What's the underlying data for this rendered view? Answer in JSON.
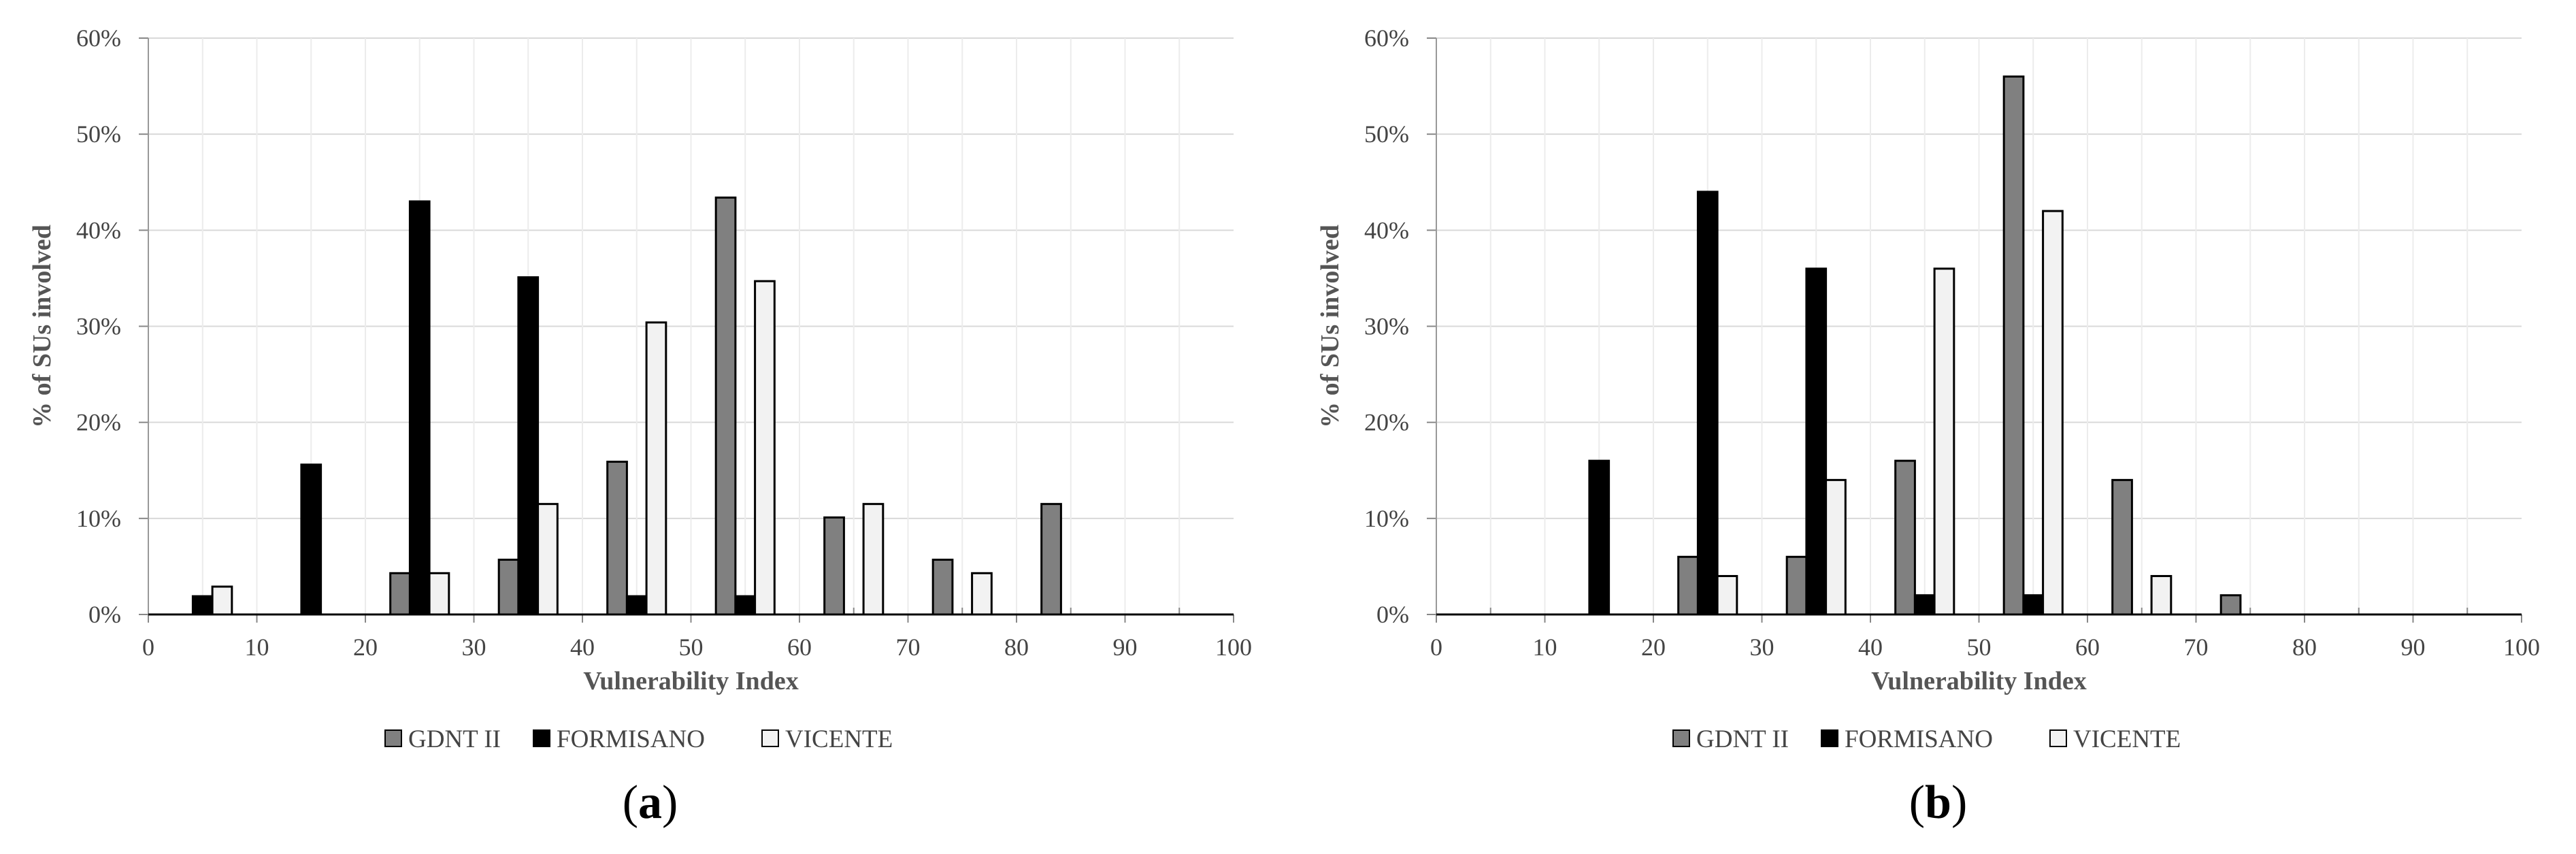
{
  "chart_data": [
    {
      "type": "bar",
      "panel_label": "a",
      "xlabel": "Vulnerability Index",
      "ylabel": "% of SUs involved",
      "xlim": [
        0,
        100
      ],
      "ylim": [
        0,
        60
      ],
      "x_ticks": [
        "0",
        "10",
        "20",
        "30",
        "40",
        "50",
        "60",
        "70",
        "80",
        "90",
        "100"
      ],
      "y_ticks": [
        "0%",
        "10%",
        "20%",
        "30%",
        "40%",
        "50%",
        "60%"
      ],
      "categories": [
        5,
        15,
        25,
        35,
        45,
        55,
        65,
        75,
        85,
        95
      ],
      "grid": true,
      "legend_position": "bottom",
      "series": [
        {
          "name": "GDNT II",
          "color": "#808080",
          "values": [
            0,
            0,
            4.3,
            5.7,
            15.9,
            43.4,
            10.1,
            5.7,
            11.5,
            0
          ]
        },
        {
          "name": "FORMISANO",
          "color": "#000000",
          "values": [
            1.9,
            15.6,
            43.0,
            35.1,
            1.9,
            1.9,
            0,
            0,
            0,
            0
          ]
        },
        {
          "name": "VICENTE",
          "color": "#f2f2f2",
          "values": [
            2.9,
            0,
            4.3,
            11.5,
            30.4,
            34.7,
            11.5,
            4.3,
            0,
            0
          ]
        }
      ]
    },
    {
      "type": "bar",
      "panel_label": "b",
      "xlabel": "Vulnerability Index",
      "ylabel": "% of SUs involved",
      "xlim": [
        0,
        100
      ],
      "ylim": [
        0,
        60
      ],
      "x_ticks": [
        "0",
        "10",
        "20",
        "30",
        "40",
        "50",
        "60",
        "70",
        "80",
        "90",
        "100"
      ],
      "y_ticks": [
        "0%",
        "10%",
        "20%",
        "30%",
        "40%",
        "50%",
        "60%"
      ],
      "categories": [
        5,
        15,
        25,
        35,
        45,
        55,
        65,
        75,
        85,
        95
      ],
      "grid": true,
      "legend_position": "bottom",
      "series": [
        {
          "name": "GDNT II",
          "color": "#808080",
          "values": [
            0,
            0,
            6,
            6,
            16,
            56,
            14,
            2,
            0,
            0
          ]
        },
        {
          "name": "FORMISANO",
          "color": "#000000",
          "values": [
            0,
            16,
            44,
            36,
            2,
            2,
            0,
            0,
            0,
            0
          ]
        },
        {
          "name": "VICENTE",
          "color": "#f2f2f2",
          "values": [
            0,
            0,
            4,
            14,
            36,
            42,
            4,
            0,
            0,
            0
          ]
        }
      ]
    }
  ]
}
